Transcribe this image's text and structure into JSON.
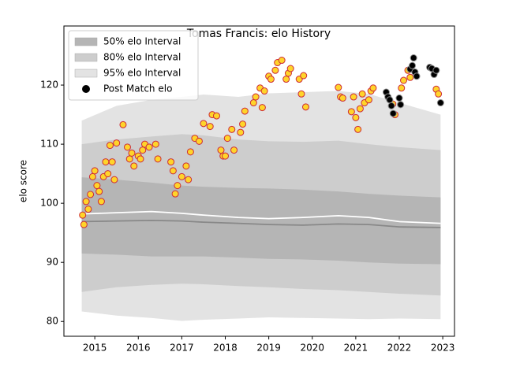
{
  "chart_data": {
    "type": "scatter",
    "title": "Tomas Francis: elo History",
    "y_label": "elo score",
    "xlim": [
      2014.29,
      2023.27
    ],
    "ylim": [
      77.5,
      130
    ],
    "xticks": [
      2015,
      2016,
      2017,
      2018,
      2019,
      2020,
      2021,
      2022,
      2023
    ],
    "yticks": [
      80,
      90,
      100,
      110,
      120
    ],
    "legend": "upper left",
    "bands": [
      {
        "name": "95% elo Interval",
        "color": "#e3e3e3",
        "x": [
          2014.7,
          2015.5,
          2016.3,
          2017.0,
          2017.5,
          2018.3,
          2019.0,
          2019.8,
          2020.6,
          2021.3,
          2022.0,
          2022.95
        ],
        "upper": [
          114.0,
          116.5,
          117.5,
          118.0,
          118.4,
          118.0,
          118.6,
          118.8,
          119.0,
          118.5,
          117.0,
          115.0
        ],
        "lower": [
          81.7,
          81.0,
          80.6,
          80.1,
          80.3,
          80.5,
          80.7,
          80.6,
          80.5,
          80.4,
          80.5,
          80.4
        ]
      },
      {
        "name": "80% elo Interval",
        "color": "#cdcdcd",
        "x": [
          2014.7,
          2015.5,
          2016.3,
          2017.0,
          2017.5,
          2018.3,
          2019.0,
          2019.8,
          2020.6,
          2021.3,
          2022.0,
          2022.95
        ],
        "upper": [
          110.0,
          110.8,
          111.3,
          111.7,
          111.5,
          110.8,
          110.5,
          110.4,
          110.6,
          110.0,
          109.5,
          109.0
        ],
        "lower": [
          85.0,
          85.8,
          86.2,
          86.4,
          86.3,
          86.0,
          85.8,
          85.5,
          85.3,
          85.0,
          84.7,
          84.4
        ]
      },
      {
        "name": "50% elo Interval",
        "color": "#b5b5b5",
        "x": [
          2014.7,
          2015.5,
          2016.3,
          2017.0,
          2017.5,
          2018.3,
          2019.0,
          2019.8,
          2020.6,
          2021.3,
          2022.0,
          2022.95
        ],
        "upper": [
          104.4,
          104.0,
          103.5,
          103.0,
          102.8,
          102.6,
          102.5,
          102.3,
          102.0,
          101.6,
          101.3,
          101.0
        ],
        "lower": [
          91.5,
          91.3,
          91.0,
          91.0,
          91.0,
          90.8,
          90.6,
          90.5,
          90.3,
          90.0,
          89.8,
          89.7
        ]
      }
    ],
    "lines": [
      {
        "color": "#888888",
        "x": [
          2014.7,
          2015.5,
          2016.3,
          2017.0,
          2017.5,
          2018.3,
          2019.0,
          2019.8,
          2020.6,
          2021.3,
          2022.0,
          2022.95
        ],
        "values": [
          96.9,
          97.0,
          97.1,
          97.0,
          96.8,
          96.6,
          96.4,
          96.3,
          96.5,
          96.4,
          96.0,
          95.9
        ]
      },
      {
        "color": "#ffffff",
        "x": [
          2014.7,
          2015.5,
          2016.3,
          2017.0,
          2017.5,
          2018.3,
          2019.0,
          2019.8,
          2020.6,
          2021.3,
          2022.0,
          2022.95
        ],
        "values": [
          98.2,
          98.4,
          98.6,
          98.3,
          98.0,
          97.6,
          97.4,
          97.6,
          97.9,
          97.6,
          96.9,
          96.6
        ]
      }
    ],
    "highlighted": {
      "color": "#ffd42a",
      "edge": "#cc2a36",
      "x": [
        2014.72,
        2014.75,
        2014.8,
        2014.85,
        2014.9,
        2014.95,
        2015.0,
        2015.05,
        2015.1,
        2015.15,
        2015.2,
        2015.25,
        2015.3,
        2015.35,
        2015.4,
        2015.45,
        2015.5,
        2015.65,
        2015.75,
        2015.8,
        2015.85,
        2015.9,
        2016.0,
        2016.05,
        2016.1,
        2016.15,
        2016.25,
        2016.4,
        2016.45,
        2016.75,
        2016.8,
        2016.85,
        2016.9,
        2017.0,
        2017.1,
        2017.15,
        2017.2,
        2017.3,
        2017.4,
        2017.5,
        2017.65,
        2017.7,
        2017.8,
        2017.9,
        2017.95,
        2018.0,
        2018.05,
        2018.15,
        2018.2,
        2018.35,
        2018.4,
        2018.45,
        2018.65,
        2018.7,
        2018.8,
        2018.85,
        2018.9,
        2019.0,
        2019.05,
        2019.15,
        2019.2,
        2019.3,
        2019.4,
        2019.45,
        2019.5,
        2019.7,
        2019.75,
        2019.8,
        2019.85,
        2020.6,
        2020.65,
        2020.7,
        2020.9,
        2020.95,
        2021.0,
        2021.05,
        2021.1,
        2021.15,
        2021.2,
        2021.3,
        2021.35,
        2021.4,
        2021.85,
        2021.9,
        2022.05,
        2022.1,
        2022.2,
        2022.25,
        2022.85,
        2022.9
      ],
      "values": [
        98,
        96.4,
        100.3,
        99,
        101.5,
        104.5,
        105.5,
        103,
        102,
        100.3,
        104.5,
        107,
        105,
        109.8,
        107,
        104,
        110.2,
        113.3,
        109.5,
        107.5,
        108.5,
        106.3,
        108,
        107.5,
        109,
        110,
        109.5,
        110,
        107.5,
        107,
        105.5,
        101.6,
        103,
        104.5,
        106.3,
        104,
        108.7,
        111,
        110.5,
        113.5,
        113,
        115,
        114.8,
        109,
        108,
        108,
        111,
        112.5,
        109,
        112,
        113.4,
        115.6,
        117,
        118,
        119.5,
        116.2,
        119,
        121.5,
        121,
        122.5,
        123.8,
        124.2,
        121,
        122,
        122.8,
        121,
        118.5,
        121.6,
        116.3,
        119.6,
        118,
        117.8,
        115.5,
        118,
        114.5,
        112.5,
        116,
        118.5,
        117,
        117.5,
        119,
        119.5,
        116.8,
        115,
        119.5,
        120.8,
        122.5,
        121.3,
        119.3,
        118.5
      ]
    },
    "series": [
      {
        "name": "Post Match elo",
        "color": "#000000",
        "edge": "#888888",
        "x": [
          2021.7,
          2021.74,
          2021.78,
          2021.82,
          2021.86,
          2022.0,
          2022.03,
          2022.25,
          2022.3,
          2022.33,
          2022.36,
          2022.4,
          2022.7,
          2022.75,
          2022.8,
          2022.85,
          2022.95
        ],
        "values": [
          118.8,
          118,
          117.5,
          116.5,
          115.2,
          117.8,
          116.7,
          122.7,
          123.3,
          124.6,
          122.2,
          121.5,
          123,
          122.8,
          121.8,
          122.5,
          117
        ]
      }
    ]
  }
}
